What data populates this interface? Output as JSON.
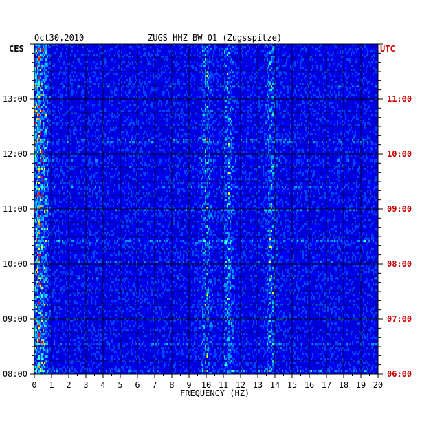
{
  "chart_data": {
    "type": "heatmap",
    "title_left": "Oct30,2010",
    "title_center": "ZUGS HHZ BW 01 (Zugsspitze)",
    "left_zone": "CES",
    "right_zone": "UTC",
    "xlabel": "FREQUENCY (HZ)",
    "x_range": [
      0,
      20
    ],
    "x_ticks": [
      "0",
      "1",
      "2",
      "3",
      "4",
      "5",
      "6",
      "7",
      "8",
      "9",
      "10",
      "11",
      "12",
      "13",
      "14",
      "15",
      "16",
      "17",
      "18",
      "19",
      "20"
    ],
    "y_left_ticks": [
      "08:00",
      "09:00",
      "10:00",
      "11:00",
      "12:00",
      "13:00"
    ],
    "y_right_ticks": [
      "06:00",
      "07:00",
      "08:00",
      "09:00",
      "10:00",
      "11:00"
    ],
    "time_range_local": [
      "08:00",
      "13:50"
    ],
    "strong_bands_hz": [
      0.3,
      10.0,
      11.3,
      13.8
    ],
    "colors": {
      "background": "#0000cc",
      "low": "#0000ff",
      "mid": "#00c0ff",
      "high": "#ffff00",
      "peak": "#ff0000",
      "grid": "#000000",
      "utc": "#cc0000"
    }
  }
}
